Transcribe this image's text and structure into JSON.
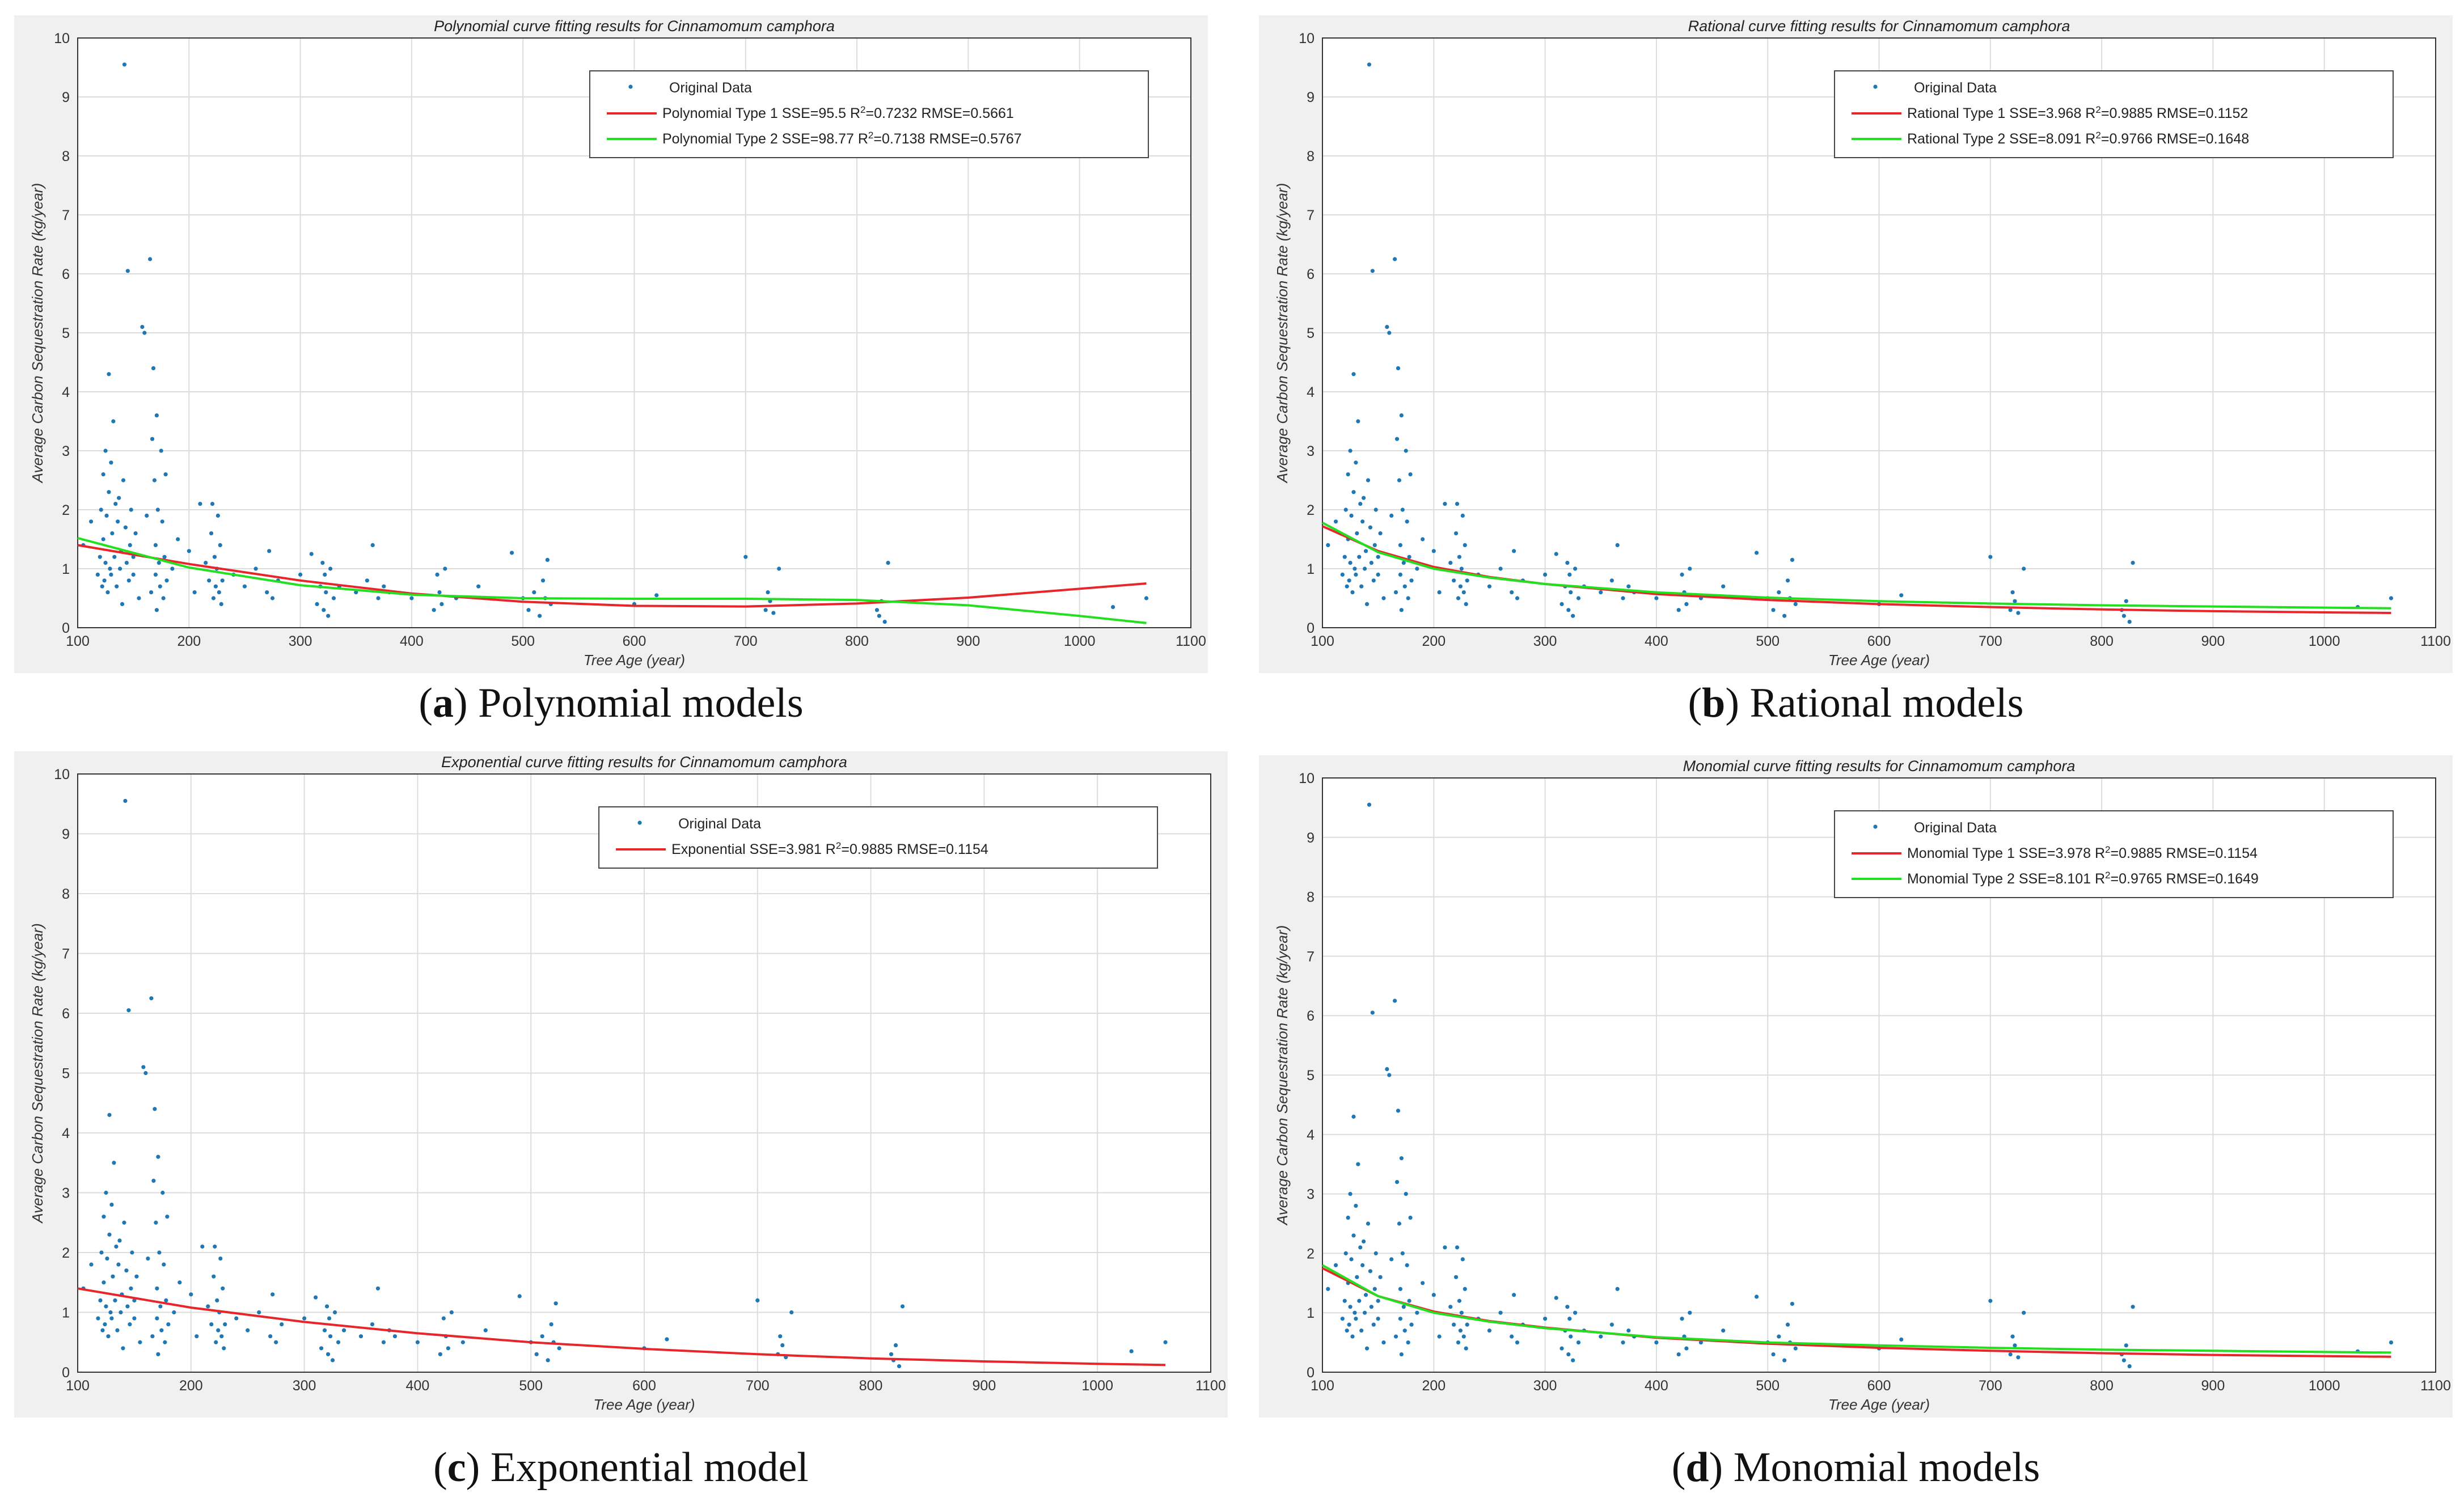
{
  "colors": {
    "data": "#1f77b4",
    "type1": "#e8252a",
    "type2": "#22e01f",
    "frame": "#f0f0f0",
    "grid": "#dcdcdc"
  },
  "panels": [
    {
      "key": "a",
      "caption": {
        "letter": "a",
        "text": "Polynomial models"
      },
      "chart_data": {
        "type": "scatter+line",
        "title": "Polynomial curve fitting results for Cinnamomum camphora",
        "xlabel": "Tree Age (year)",
        "ylabel": "Average Carbon Sequestration Rate (kg/year)",
        "xlim": [
          100,
          1100
        ],
        "ylim": [
          0,
          10
        ],
        "xticks": [
          100,
          200,
          300,
          400,
          500,
          600,
          700,
          800,
          900,
          1000,
          1100
        ],
        "yticks": [
          0,
          1,
          2,
          3,
          4,
          5,
          6,
          7,
          8,
          9,
          10
        ],
        "legend": [
          {
            "kind": "dots",
            "label": "Original Data"
          },
          {
            "kind": "line",
            "color_key": "type1",
            "pre": "Polynomial Type 1  SSE=95.5   R",
            "post": "=0.7232 RMSE=0.5661"
          },
          {
            "kind": "line",
            "color_key": "type2",
            "pre": "Polynomial Type 2  SSE=98.77 R",
            "post": "=0.7138 RMSE=0.5767"
          }
        ],
        "series": [
          {
            "name": "Polynomial Type 1",
            "color_key": "type1",
            "x": [
              100,
              200,
              300,
              400,
              500,
              600,
              700,
              800,
              900,
              1000,
              1060
            ],
            "y": [
              1.4,
              1.08,
              0.8,
              0.58,
              0.44,
              0.37,
              0.36,
              0.41,
              0.51,
              0.66,
              0.75
            ]
          },
          {
            "name": "Polynomial Type 2",
            "color_key": "type2",
            "x": [
              100,
              200,
              300,
              400,
              500,
              600,
              700,
              800,
              900,
              1000,
              1060
            ],
            "y": [
              1.52,
              1.02,
              0.72,
              0.56,
              0.5,
              0.49,
              0.49,
              0.47,
              0.38,
              0.2,
              0.08
            ]
          }
        ]
      }
    },
    {
      "key": "b",
      "caption": {
        "letter": "b",
        "text": "Rational models"
      },
      "chart_data": {
        "type": "scatter+line",
        "title": "Rational curve fitting results for Cinnamomum camphora",
        "xlabel": "Tree Age (year)",
        "ylabel": "Average Carbon Sequestration Rate (kg/year)",
        "xlim": [
          100,
          1100
        ],
        "ylim": [
          0,
          10
        ],
        "xticks": [
          100,
          200,
          300,
          400,
          500,
          600,
          700,
          800,
          900,
          1000,
          1100
        ],
        "yticks": [
          0,
          1,
          2,
          3,
          4,
          5,
          6,
          7,
          8,
          9,
          10
        ],
        "legend": [
          {
            "kind": "dots",
            "label": "Original Data"
          },
          {
            "kind": "line",
            "color_key": "type1",
            "pre": "Rational Type 1 SSE=3.968 R",
            "post": "=0.9885 RMSE=0.1152"
          },
          {
            "kind": "line",
            "color_key": "type2",
            "pre": "Rational Type 2 SSE=8.091 R",
            "post": "=0.9766 RMSE=0.1648"
          }
        ],
        "series": [
          {
            "name": "Rational Type 1",
            "color_key": "type1",
            "x": [
              100,
              150,
              200,
              250,
              300,
              400,
              500,
              600,
              700,
              800,
              900,
              1000,
              1060
            ],
            "y": [
              1.72,
              1.3,
              1.03,
              0.86,
              0.74,
              0.57,
              0.47,
              0.4,
              0.35,
              0.31,
              0.28,
              0.26,
              0.25
            ]
          },
          {
            "name": "Rational Type 2",
            "color_key": "type2",
            "x": [
              100,
              150,
              200,
              250,
              300,
              400,
              500,
              600,
              700,
              800,
              900,
              1000,
              1060
            ],
            "y": [
              1.78,
              1.28,
              1.0,
              0.85,
              0.74,
              0.6,
              0.51,
              0.45,
              0.41,
              0.38,
              0.36,
              0.34,
              0.33
            ]
          }
        ]
      }
    },
    {
      "key": "c",
      "caption": {
        "letter": "c",
        "text": "Exponential model"
      },
      "chart_data": {
        "type": "scatter+line",
        "title": "Exponential curve fitting results for Cinnamomum camphora",
        "xlabel": "Tree Age (year)",
        "ylabel": "Average Carbon Sequestration Rate (kg/year)",
        "xlim": [
          100,
          1100
        ],
        "ylim": [
          0,
          10
        ],
        "xticks": [
          100,
          200,
          300,
          400,
          500,
          600,
          700,
          800,
          900,
          1000,
          1100
        ],
        "yticks": [
          0,
          1,
          2,
          3,
          4,
          5,
          6,
          7,
          8,
          9,
          10
        ],
        "legend": [
          {
            "kind": "dots",
            "label": "Original Data"
          },
          {
            "kind": "line",
            "color_key": "type1",
            "pre": "Exponential SSE=3.981 R",
            "post": "=0.9885 RMSE=0.1154"
          }
        ],
        "series": [
          {
            "name": "Exponential",
            "color_key": "type1",
            "x": [
              100,
              200,
              300,
              400,
              500,
              600,
              700,
              800,
              900,
              1000,
              1060
            ],
            "y": [
              1.4,
              1.08,
              0.84,
              0.65,
              0.5,
              0.39,
              0.3,
              0.23,
              0.18,
              0.14,
              0.12
            ]
          }
        ]
      }
    },
    {
      "key": "d",
      "caption": {
        "letter": "d",
        "text": "Monomial models"
      },
      "chart_data": {
        "type": "scatter+line",
        "title": "Monomial curve fitting results for Cinnamomum camphora",
        "xlabel": "Tree Age (year)",
        "ylabel": "Average Carbon Sequestration Rate (kg/year)",
        "xlim": [
          100,
          1100
        ],
        "ylim": [
          0,
          10
        ],
        "xticks": [
          100,
          200,
          300,
          400,
          500,
          600,
          700,
          800,
          900,
          1000,
          1100
        ],
        "yticks": [
          0,
          1,
          2,
          3,
          4,
          5,
          6,
          7,
          8,
          9,
          10
        ],
        "legend": [
          {
            "kind": "dots",
            "label": "Original Data"
          },
          {
            "kind": "line",
            "color_key": "type1",
            "pre": "Monomial Type 1 SSE=3.978 R",
            "post": "=0.9885 RMSE=0.1154"
          },
          {
            "kind": "line",
            "color_key": "type2",
            "pre": "Monomial Type 2 SSE=8.101 R",
            "post": "=0.9765 RMSE=0.1649"
          }
        ],
        "series": [
          {
            "name": "Monomial Type 1",
            "color_key": "type1",
            "x": [
              100,
              150,
              200,
              250,
              300,
              400,
              500,
              600,
              700,
              800,
              900,
              1000,
              1060
            ],
            "y": [
              1.75,
              1.28,
              1.02,
              0.86,
              0.75,
              0.58,
              0.48,
              0.41,
              0.36,
              0.32,
              0.29,
              0.27,
              0.26
            ]
          },
          {
            "name": "Monomial Type 2",
            "color_key": "type2",
            "x": [
              100,
              150,
              200,
              250,
              300,
              400,
              500,
              600,
              700,
              800,
              900,
              1000,
              1060
            ],
            "y": [
              1.8,
              1.28,
              1.0,
              0.85,
              0.74,
              0.59,
              0.5,
              0.45,
              0.41,
              0.38,
              0.36,
              0.34,
              0.33
            ]
          }
        ]
      }
    }
  ],
  "scatter_points": {
    "x": [
      105,
      112,
      118,
      120,
      121,
      122,
      123,
      123,
      124,
      125,
      125,
      126,
      127,
      128,
      128,
      129,
      130,
      130,
      131,
      132,
      133,
      134,
      135,
      136,
      137,
      138,
      139,
      140,
      141,
      142,
      143,
      144,
      145,
      146,
      147,
      148,
      150,
      150,
      152,
      155,
      158,
      160,
      162,
      165,
      166,
      167,
      168,
      169,
      170,
      170,
      171,
      171,
      172,
      173,
      174,
      175,
      176,
      177,
      178,
      179,
      180,
      185,
      190,
      200,
      205,
      210,
      215,
      218,
      220,
      221,
      222,
      223,
      224,
      225,
      226,
      227,
      228,
      229,
      230,
      240,
      250,
      260,
      270,
      272,
      275,
      280,
      300,
      310,
      315,
      318,
      320,
      321,
      322,
      323,
      325,
      327,
      330,
      335,
      350,
      360,
      365,
      370,
      375,
      380,
      400,
      420,
      423,
      425,
      427,
      430,
      440,
      460,
      490,
      500,
      505,
      510,
      515,
      518,
      520,
      522,
      525,
      600,
      620,
      700,
      718,
      720,
      722,
      725,
      730,
      818,
      820,
      822,
      825,
      828,
      1030,
      1060
    ],
    "y": [
      1.4,
      1.8,
      0.9,
      1.2,
      2.0,
      0.7,
      1.5,
      2.6,
      0.8,
      3.0,
      1.1,
      1.9,
      0.6,
      4.3,
      2.3,
      1.0,
      2.8,
      0.9,
      1.6,
      3.5,
      1.2,
      2.1,
      0.7,
      1.8,
      2.2,
      1.0,
      1.3,
      0.4,
      2.5,
      9.55,
      1.7,
      1.1,
      6.05,
      0.8,
      1.4,
      2.0,
      0.9,
      1.2,
      1.6,
      0.5,
      5.1,
      5.0,
      1.9,
      6.25,
      0.6,
      3.2,
      4.4,
      2.5,
      0.9,
      1.4,
      3.6,
      0.3,
      2.0,
      1.1,
      0.7,
      3.0,
      1.8,
      0.5,
      1.2,
      2.6,
      0.8,
      1.0,
      1.5,
      1.3,
      0.6,
      2.1,
      1.1,
      0.8,
      1.6,
      2.1,
      0.5,
      1.2,
      0.7,
      1.0,
      1.9,
      0.6,
      1.4,
      0.4,
      0.8,
      0.9,
      0.7,
      1.0,
      0.6,
      1.3,
      0.5,
      0.8,
      0.9,
      1.25,
      0.4,
      0.7,
      1.1,
      0.3,
      0.9,
      0.6,
      0.2,
      1.0,
      0.5,
      0.7,
      0.6,
      0.8,
      1.4,
      0.5,
      0.7,
      0.6,
      0.5,
      0.3,
      0.9,
      0.6,
      0.4,
      1.0,
      0.5,
      0.7,
      1.27,
      0.5,
      0.3,
      0.6,
      0.2,
      0.8,
      0.5,
      1.15,
      0.4,
      0.4,
      0.55,
      1.2,
      0.3,
      0.6,
      0.45,
      0.25,
      1.0,
      0.3,
      0.2,
      0.45,
      0.1,
      1.1,
      0.35,
      0.5
    ]
  }
}
